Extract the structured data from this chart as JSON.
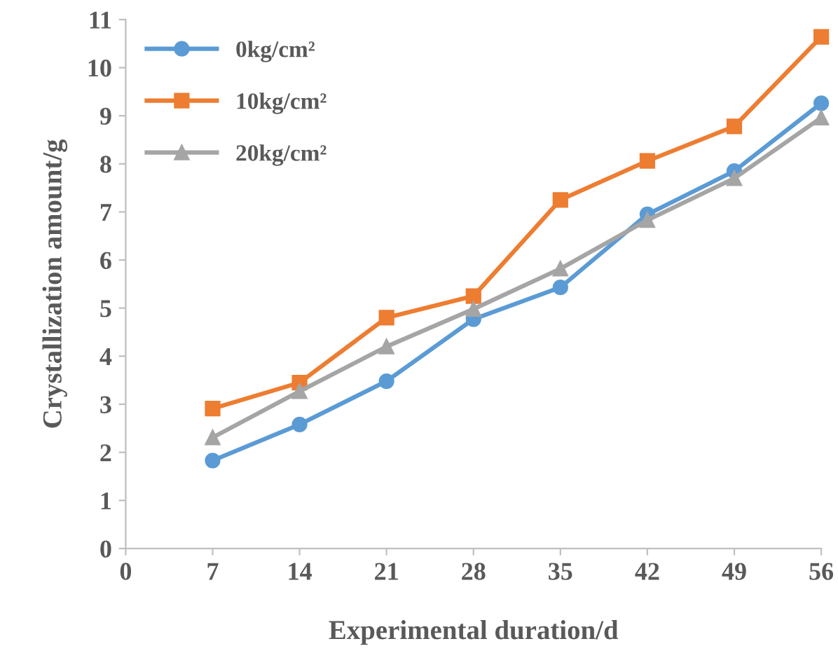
{
  "chart_data": {
    "type": "line",
    "xlabel": "Experimental duration/d",
    "ylabel": "Crystallization amount/g",
    "x": [
      7,
      14,
      21,
      28,
      35,
      42,
      49,
      56
    ],
    "series": [
      {
        "name": "0kg/cm²",
        "color": "#5b9bd5",
        "marker": "circle",
        "values": [
          1.83,
          2.58,
          3.48,
          4.77,
          5.43,
          6.95,
          7.85,
          9.26
        ]
      },
      {
        "name": "10kg/cm²",
        "color": "#ed7d31",
        "marker": "square",
        "values": [
          2.91,
          3.45,
          4.8,
          5.25,
          7.25,
          8.06,
          8.78,
          10.64
        ]
      },
      {
        "name": "20kg/cm²",
        "color": "#a5a5a5",
        "marker": "triangle",
        "values": [
          2.31,
          3.27,
          4.2,
          4.98,
          5.82,
          6.83,
          7.7,
          8.96
        ]
      }
    ],
    "xlim": [
      0,
      56
    ],
    "xticks": [
      0,
      7,
      14,
      21,
      28,
      35,
      42,
      49,
      56
    ],
    "ylim": [
      0,
      11
    ],
    "yticks": [
      0,
      1,
      2,
      3,
      4,
      5,
      6,
      7,
      8,
      9,
      10,
      11
    ],
    "grid": false,
    "legend": "top left",
    "line_style": "solid"
  }
}
